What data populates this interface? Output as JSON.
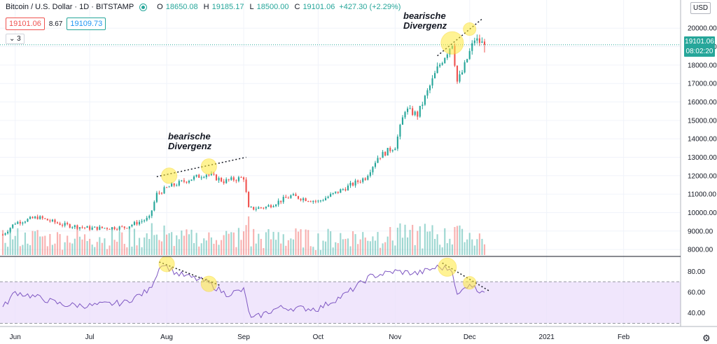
{
  "header": {
    "symbol": "Bitcoin / U.S. Dollar · 1D · BITSTAMP",
    "o_label": "O",
    "o_value": "18650.08",
    "h_label": "H",
    "h_value": "19185.17",
    "l_label": "L",
    "l_value": "18500.00",
    "c_label": "C",
    "c_value": "19101.06",
    "change": "+427.30 (+2.29%)"
  },
  "pills": {
    "bid": "19101.06",
    "spread": "8.67",
    "ask": "19109.73"
  },
  "indicator_count": "3",
  "currency": "USD",
  "last_price": "19101.06",
  "countdown": "08:02:20",
  "annotations": {
    "left": [
      "bearische",
      "Divergenz"
    ],
    "right": [
      "bearische",
      "Divergenz"
    ]
  },
  "colors": {
    "up": "#26a69a",
    "down": "#ef5350",
    "rsi_line": "#7e57c2",
    "rsi_band": "#e9dcfb",
    "highlight": "#ffeb3b"
  },
  "chart_data": [
    {
      "type": "candlestick",
      "title": "Bitcoin / U.S. Dollar · 1D · BITSTAMP",
      "x_tick_labels": [
        "Jun",
        "Jul",
        "Aug",
        "Sep",
        "Oct",
        "Nov",
        "Dec",
        "2021",
        "Feb"
      ],
      "y_tick_labels": [
        "8000.00",
        "9000.00",
        "10000.00",
        "11000.00",
        "12000.00",
        "13000.00",
        "14000.00",
        "15000.00",
        "16000.00",
        "17000.00",
        "18000.00",
        "19000.00",
        "20000.00"
      ],
      "y_range": [
        7700,
        21300
      ],
      "x_range": [
        "2020-05-27",
        "2020-12-07"
      ],
      "approx_close_path": [
        [
          "2020-05-27",
          8800
        ],
        [
          "2020-06-01",
          9450
        ],
        [
          "2020-06-10",
          9750
        ],
        [
          "2020-06-20",
          9350
        ],
        [
          "2020-07-01",
          9150
        ],
        [
          "2020-07-15",
          9200
        ],
        [
          "2020-07-25",
          9700
        ],
        [
          "2020-07-28",
          11000
        ],
        [
          "2020-08-02",
          11400
        ],
        [
          "2020-08-10",
          11800
        ],
        [
          "2020-08-17",
          12100
        ],
        [
          "2020-08-24",
          11700
        ],
        [
          "2020-09-01",
          11900
        ],
        [
          "2020-09-03",
          10200
        ],
        [
          "2020-09-10",
          10300
        ],
        [
          "2020-09-20",
          10900
        ],
        [
          "2020-10-01",
          10600
        ],
        [
          "2020-10-10",
          11200
        ],
        [
          "2020-10-20",
          11900
        ],
        [
          "2020-10-25",
          13000
        ],
        [
          "2020-11-01",
          13600
        ],
        [
          "2020-11-05",
          15600
        ],
        [
          "2020-11-10",
          15300
        ],
        [
          "2020-11-18",
          17800
        ],
        [
          "2020-11-24",
          19200
        ],
        [
          "2020-11-26",
          17100
        ],
        [
          "2020-11-28",
          17600
        ],
        [
          "2020-12-01",
          18700
        ],
        [
          "2020-12-03",
          19400
        ],
        [
          "2020-12-07",
          19101.06
        ]
      ],
      "volume_shown": true,
      "grid": true,
      "legend": "top-left"
    },
    {
      "type": "line",
      "title": "",
      "series": [
        {
          "name": "",
          "values": [
            [
              "2020-05-27",
              45
            ],
            [
              "2020-06-01",
              60
            ],
            [
              "2020-06-10",
              55
            ],
            [
              "2020-06-20",
              48
            ],
            [
              "2020-07-01",
              47
            ],
            [
              "2020-07-15",
              50
            ],
            [
              "2020-07-25",
              62
            ],
            [
              "2020-07-30",
              88
            ],
            [
              "2020-08-05",
              78
            ],
            [
              "2020-08-17",
              70
            ],
            [
              "2020-08-25",
              58
            ],
            [
              "2020-09-01",
              62
            ],
            [
              "2020-09-04",
              34
            ],
            [
              "2020-09-15",
              45
            ],
            [
              "2020-10-01",
              44
            ],
            [
              "2020-10-12",
              58
            ],
            [
              "2020-10-22",
              75
            ],
            [
              "2020-11-01",
              80
            ],
            [
              "2020-11-10",
              78
            ],
            [
              "2020-11-18",
              84
            ],
            [
              "2020-11-24",
              82
            ],
            [
              "2020-11-26",
              56
            ],
            [
              "2020-12-01",
              69
            ],
            [
              "2020-12-04",
              62
            ],
            [
              "2020-12-07",
              62
            ]
          ]
        }
      ],
      "y_tick_labels": [
        "40.00",
        "60.00",
        "80.00"
      ],
      "y_range": [
        27,
        93
      ],
      "overbought": 70,
      "oversold": 30,
      "grid": true
    }
  ]
}
